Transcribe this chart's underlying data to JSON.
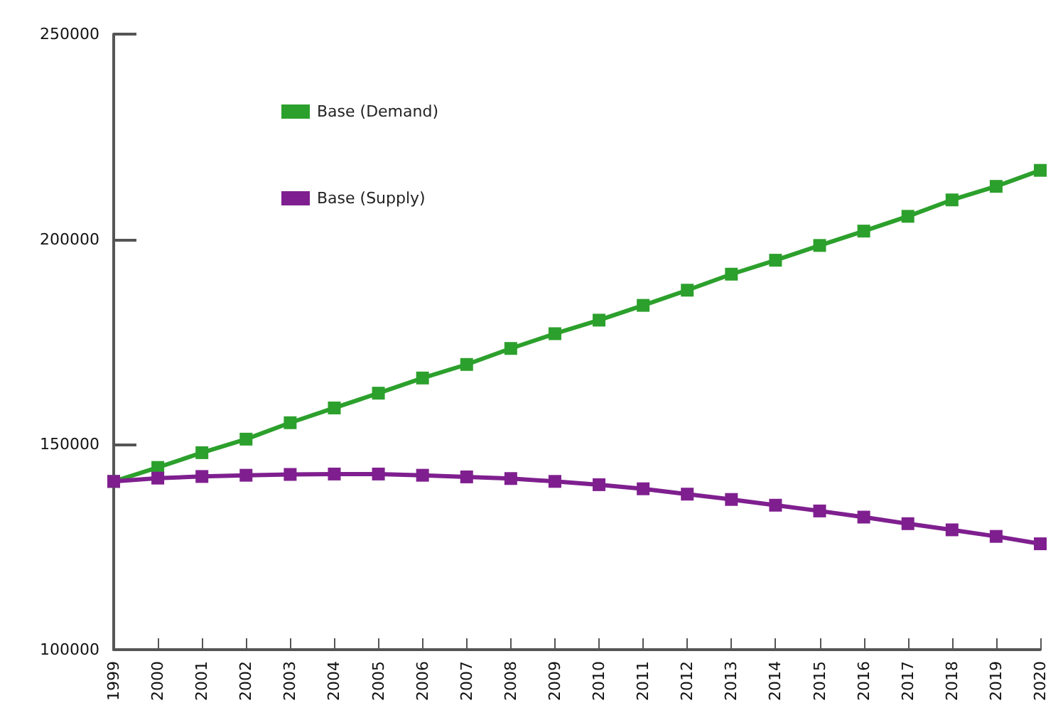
{
  "chart_data": {
    "type": "line",
    "categories": [
      "1999",
      "2000",
      "2001",
      "2002",
      "2003",
      "2004",
      "2005",
      "2006",
      "2007",
      "2008",
      "2009",
      "2010",
      "2011",
      "2012",
      "2013",
      "2014",
      "2015",
      "2016",
      "2017",
      "2018",
      "2019",
      "2020"
    ],
    "series": [
      {
        "name": "Base (Demand)",
        "color": "#2ca02c",
        "values": [
          141000,
          144400,
          148000,
          151300,
          155300,
          158900,
          162500,
          166200,
          169500,
          173400,
          177000,
          180300,
          183900,
          187600,
          191500,
          194900,
          198500,
          202000,
          205600,
          209600,
          212900,
          216800
        ]
      },
      {
        "name": "Base (Supply)",
        "color": "#7f1f8f",
        "values": [
          141000,
          141800,
          142200,
          142500,
          142700,
          142800,
          142800,
          142500,
          142100,
          141700,
          141000,
          140200,
          139200,
          137900,
          136600,
          135200,
          133800,
          132300,
          130700,
          129200,
          127600,
          125800
        ]
      }
    ],
    "ylim": [
      100000,
      250000
    ],
    "yticks": [
      100000,
      150000,
      200000,
      250000
    ],
    "grid": false,
    "legend": "top left",
    "marker": "square",
    "line_style": "solid"
  }
}
